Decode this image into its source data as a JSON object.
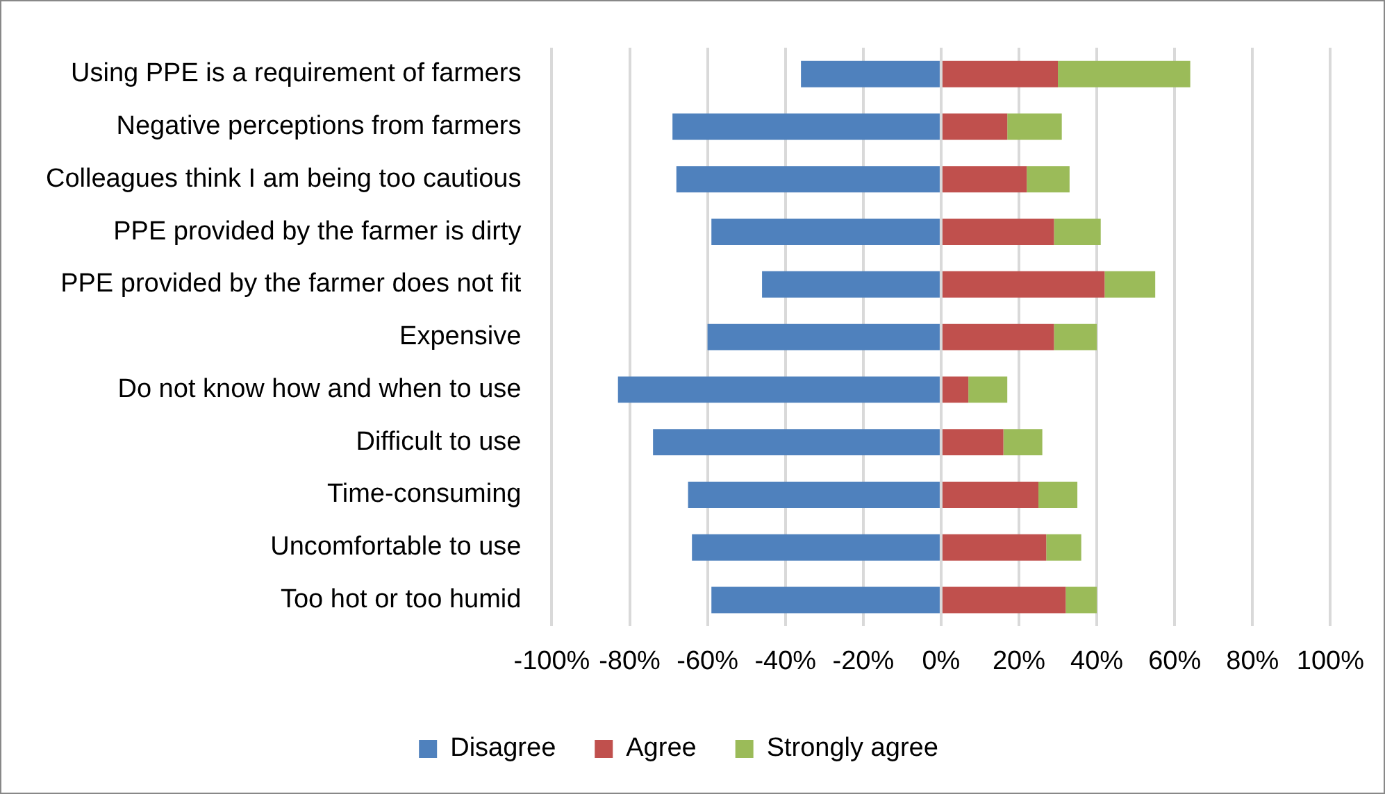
{
  "chart_data": {
    "type": "bar",
    "orientation": "horizontal",
    "stacked": true,
    "categories": [
      "Using PPE is a requirement of farmers",
      "Negative perceptions from farmers",
      "Colleagues think I am being too cautious",
      "PPE provided by the farmer is dirty",
      "PPE provided by the farmer does not fit",
      "Expensive",
      "Do not know how and when to use",
      "Difficult to use",
      "Time-consuming",
      "Uncomfortable to use",
      "Too hot or too humid"
    ],
    "series": [
      {
        "name": "Disagree",
        "color": "#4f81bd",
        "values": [
          -36,
          -69,
          -68,
          -59,
          -46,
          -60,
          -83,
          -74,
          -65,
          -64,
          -59
        ]
      },
      {
        "name": "Agree",
        "color": "#c0504d",
        "values": [
          30,
          17,
          22,
          29,
          42,
          29,
          7,
          16,
          25,
          27,
          32
        ]
      },
      {
        "name": "Strongly agree",
        "color": "#9bbb59",
        "values": [
          34,
          14,
          11,
          12,
          13,
          11,
          10,
          10,
          10,
          9,
          8
        ]
      }
    ],
    "xlim": [
      -100,
      100
    ],
    "xticks": [
      {
        "value": -100,
        "label": "-100%"
      },
      {
        "value": -80,
        "label": "-80%"
      },
      {
        "value": -60,
        "label": "-60%"
      },
      {
        "value": -40,
        "label": "-40%"
      },
      {
        "value": -20,
        "label": "-20%"
      },
      {
        "value": 0,
        "label": "0%"
      },
      {
        "value": 20,
        "label": "20%"
      },
      {
        "value": 40,
        "label": "40%"
      },
      {
        "value": 60,
        "label": "60%"
      },
      {
        "value": 80,
        "label": "80%"
      },
      {
        "value": 100,
        "label": "100%"
      }
    ],
    "grid": "x",
    "legend": "bottom"
  }
}
